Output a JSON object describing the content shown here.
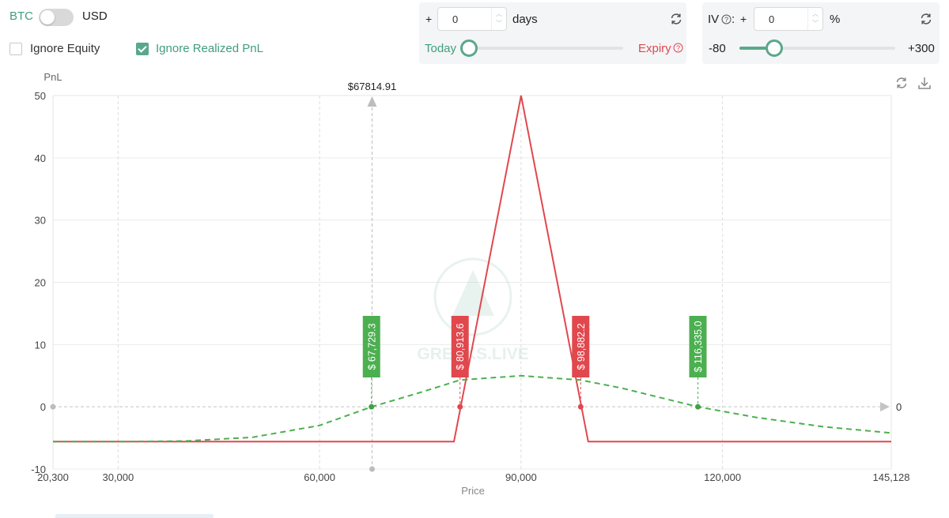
{
  "controls": {
    "unit_left": "BTC",
    "unit_right": "USD",
    "ignore_equity": {
      "label": "Ignore Equity",
      "checked": false
    },
    "ignore_realized": {
      "label": "Ignore Realized PnL",
      "checked": true
    }
  },
  "days_panel": {
    "prefix": "+",
    "value": "0",
    "unit": "days",
    "left_label": "Today",
    "right_label": "Expiry",
    "slider_position": 0
  },
  "iv_panel": {
    "label": "IV",
    "prefix": "+",
    "value": "0",
    "unit": "%",
    "min_label": "-80",
    "max_label": "+300",
    "slider_position": 0.21
  },
  "colors": {
    "accent": "#3f9f7a",
    "red": "#e0484e",
    "expiry_line": "#e0484e",
    "today_line": "#4caf50"
  },
  "chart_data": {
    "type": "line",
    "ylabel": "PnL",
    "xlabel": "Price",
    "xlim": [
      20300,
      145128
    ],
    "ylim": [
      -10,
      50
    ],
    "x_ticks": [
      "20,300",
      "30,000",
      "60,000",
      "90,000",
      "120,000",
      "145,128"
    ],
    "x_tick_values": [
      20300,
      30000,
      60000,
      90000,
      120000,
      145128
    ],
    "y_ticks": [
      -10,
      0,
      10,
      20,
      30,
      40,
      50
    ],
    "zero_label": "0",
    "grid": true,
    "current_price": {
      "value": 67814.91,
      "label": "$67814.91"
    },
    "series": [
      {
        "style": "solid",
        "color": "#e0484e",
        "x": [
          20300,
          80000,
          90000,
          100000,
          145128
        ],
        "y": [
          -5.6,
          -5.6,
          50,
          -5.6,
          -5.6
        ]
      },
      {
        "style": "dashed",
        "color": "#4caf50",
        "x": [
          20300,
          30000,
          40000,
          50000,
          60000,
          67729.3,
          75000,
          80913.6,
          90000,
          98882.2,
          105000,
          116335,
          125000,
          135000,
          145128
        ],
        "y": [
          -5.6,
          -5.6,
          -5.5,
          -4.9,
          -3.0,
          0,
          2.3,
          4.3,
          5.0,
          4.3,
          3.0,
          0,
          -1.7,
          -3.2,
          -4.2
        ]
      }
    ],
    "breakevens": [
      {
        "value": 67729.3,
        "label": "$ 67,729.3",
        "color": "green"
      },
      {
        "value": 80913.6,
        "label": "$ 80,913.6",
        "color": "red"
      },
      {
        "value": 98882.2,
        "label": "$ 98,882.2",
        "color": "red"
      },
      {
        "value": 116335.0,
        "label": "$ 116,335.0",
        "color": "green"
      }
    ],
    "watermark": "GREEKS.LIVE"
  }
}
